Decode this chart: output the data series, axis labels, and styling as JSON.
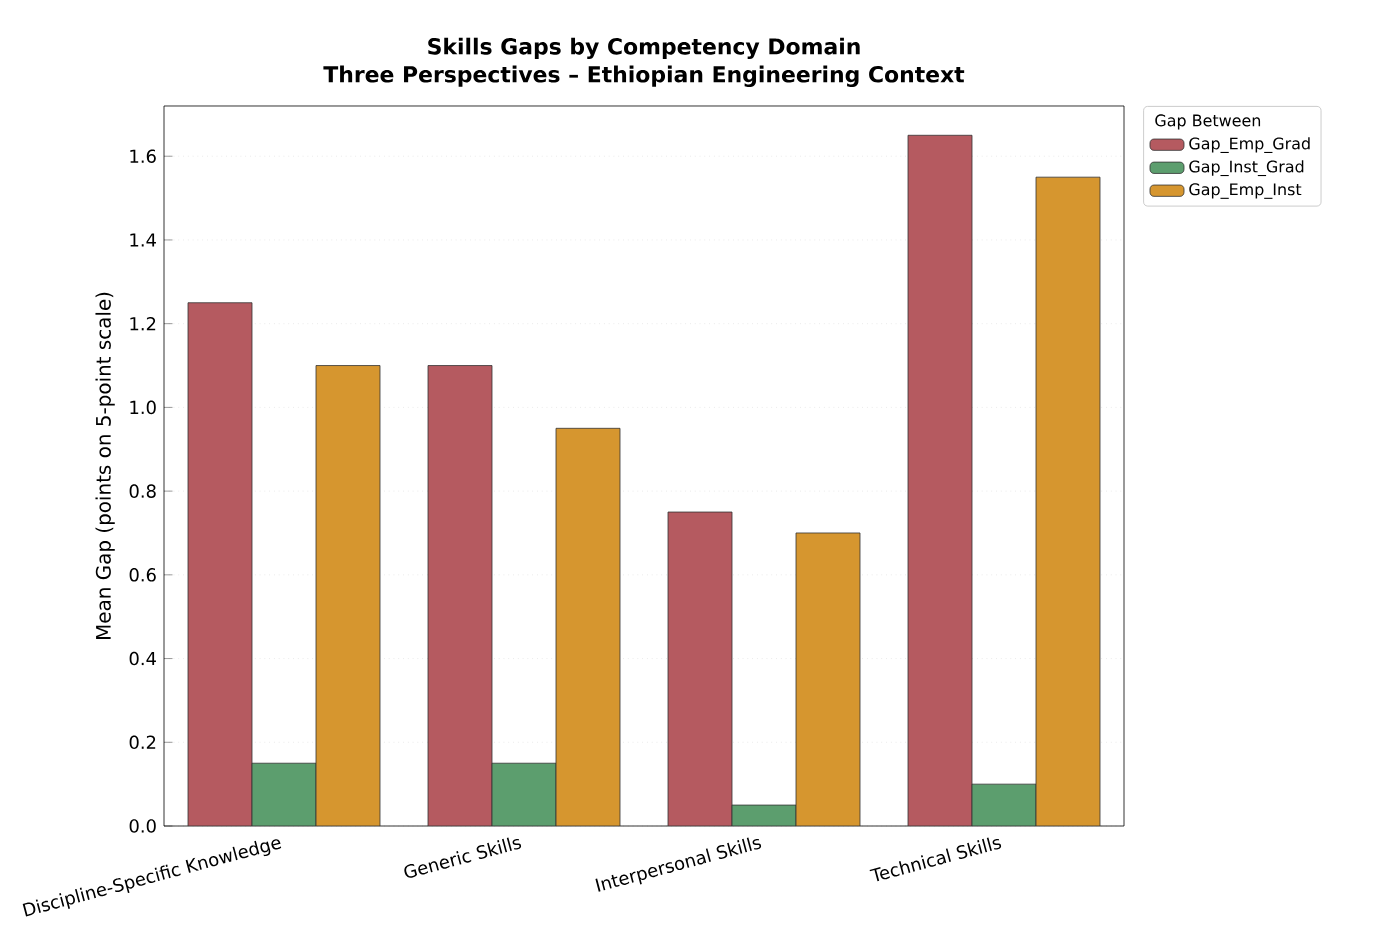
{
  "chart_data": {
    "type": "bar",
    "title": "Skills Gaps by Competency Domain",
    "subtitle": "Three Perspectives – Ethiopian Engineering Context",
    "ylabel": "Mean Gap (points on 5-point scale)",
    "legend_title": "Gap Between",
    "categories": [
      "Discipline-Specific Knowledge",
      "Generic Skills",
      "Interpersonal Skills",
      "Technical Skills"
    ],
    "series": [
      {
        "name": "Gap_Emp_Grad",
        "color": "#b55a60",
        "values": [
          1.25,
          1.1,
          0.75,
          1.65
        ]
      },
      {
        "name": "Gap_Inst_Grad",
        "color": "#5c9e6e",
        "values": [
          0.15,
          0.15,
          0.05,
          0.1
        ]
      },
      {
        "name": "Gap_Emp_Inst",
        "color": "#d6962f",
        "values": [
          1.1,
          0.95,
          0.7,
          1.55
        ]
      }
    ],
    "ylim": [
      0,
      1.72
    ],
    "yticks": [
      {
        "value": 0,
        "label": "0.0"
      },
      0.2,
      0.4,
      0.6,
      0.8,
      {
        "value": 1,
        "label": "1.0"
      },
      1.2,
      1.4,
      1.6
    ],
    "grid": "y",
    "legend": "top right"
  }
}
